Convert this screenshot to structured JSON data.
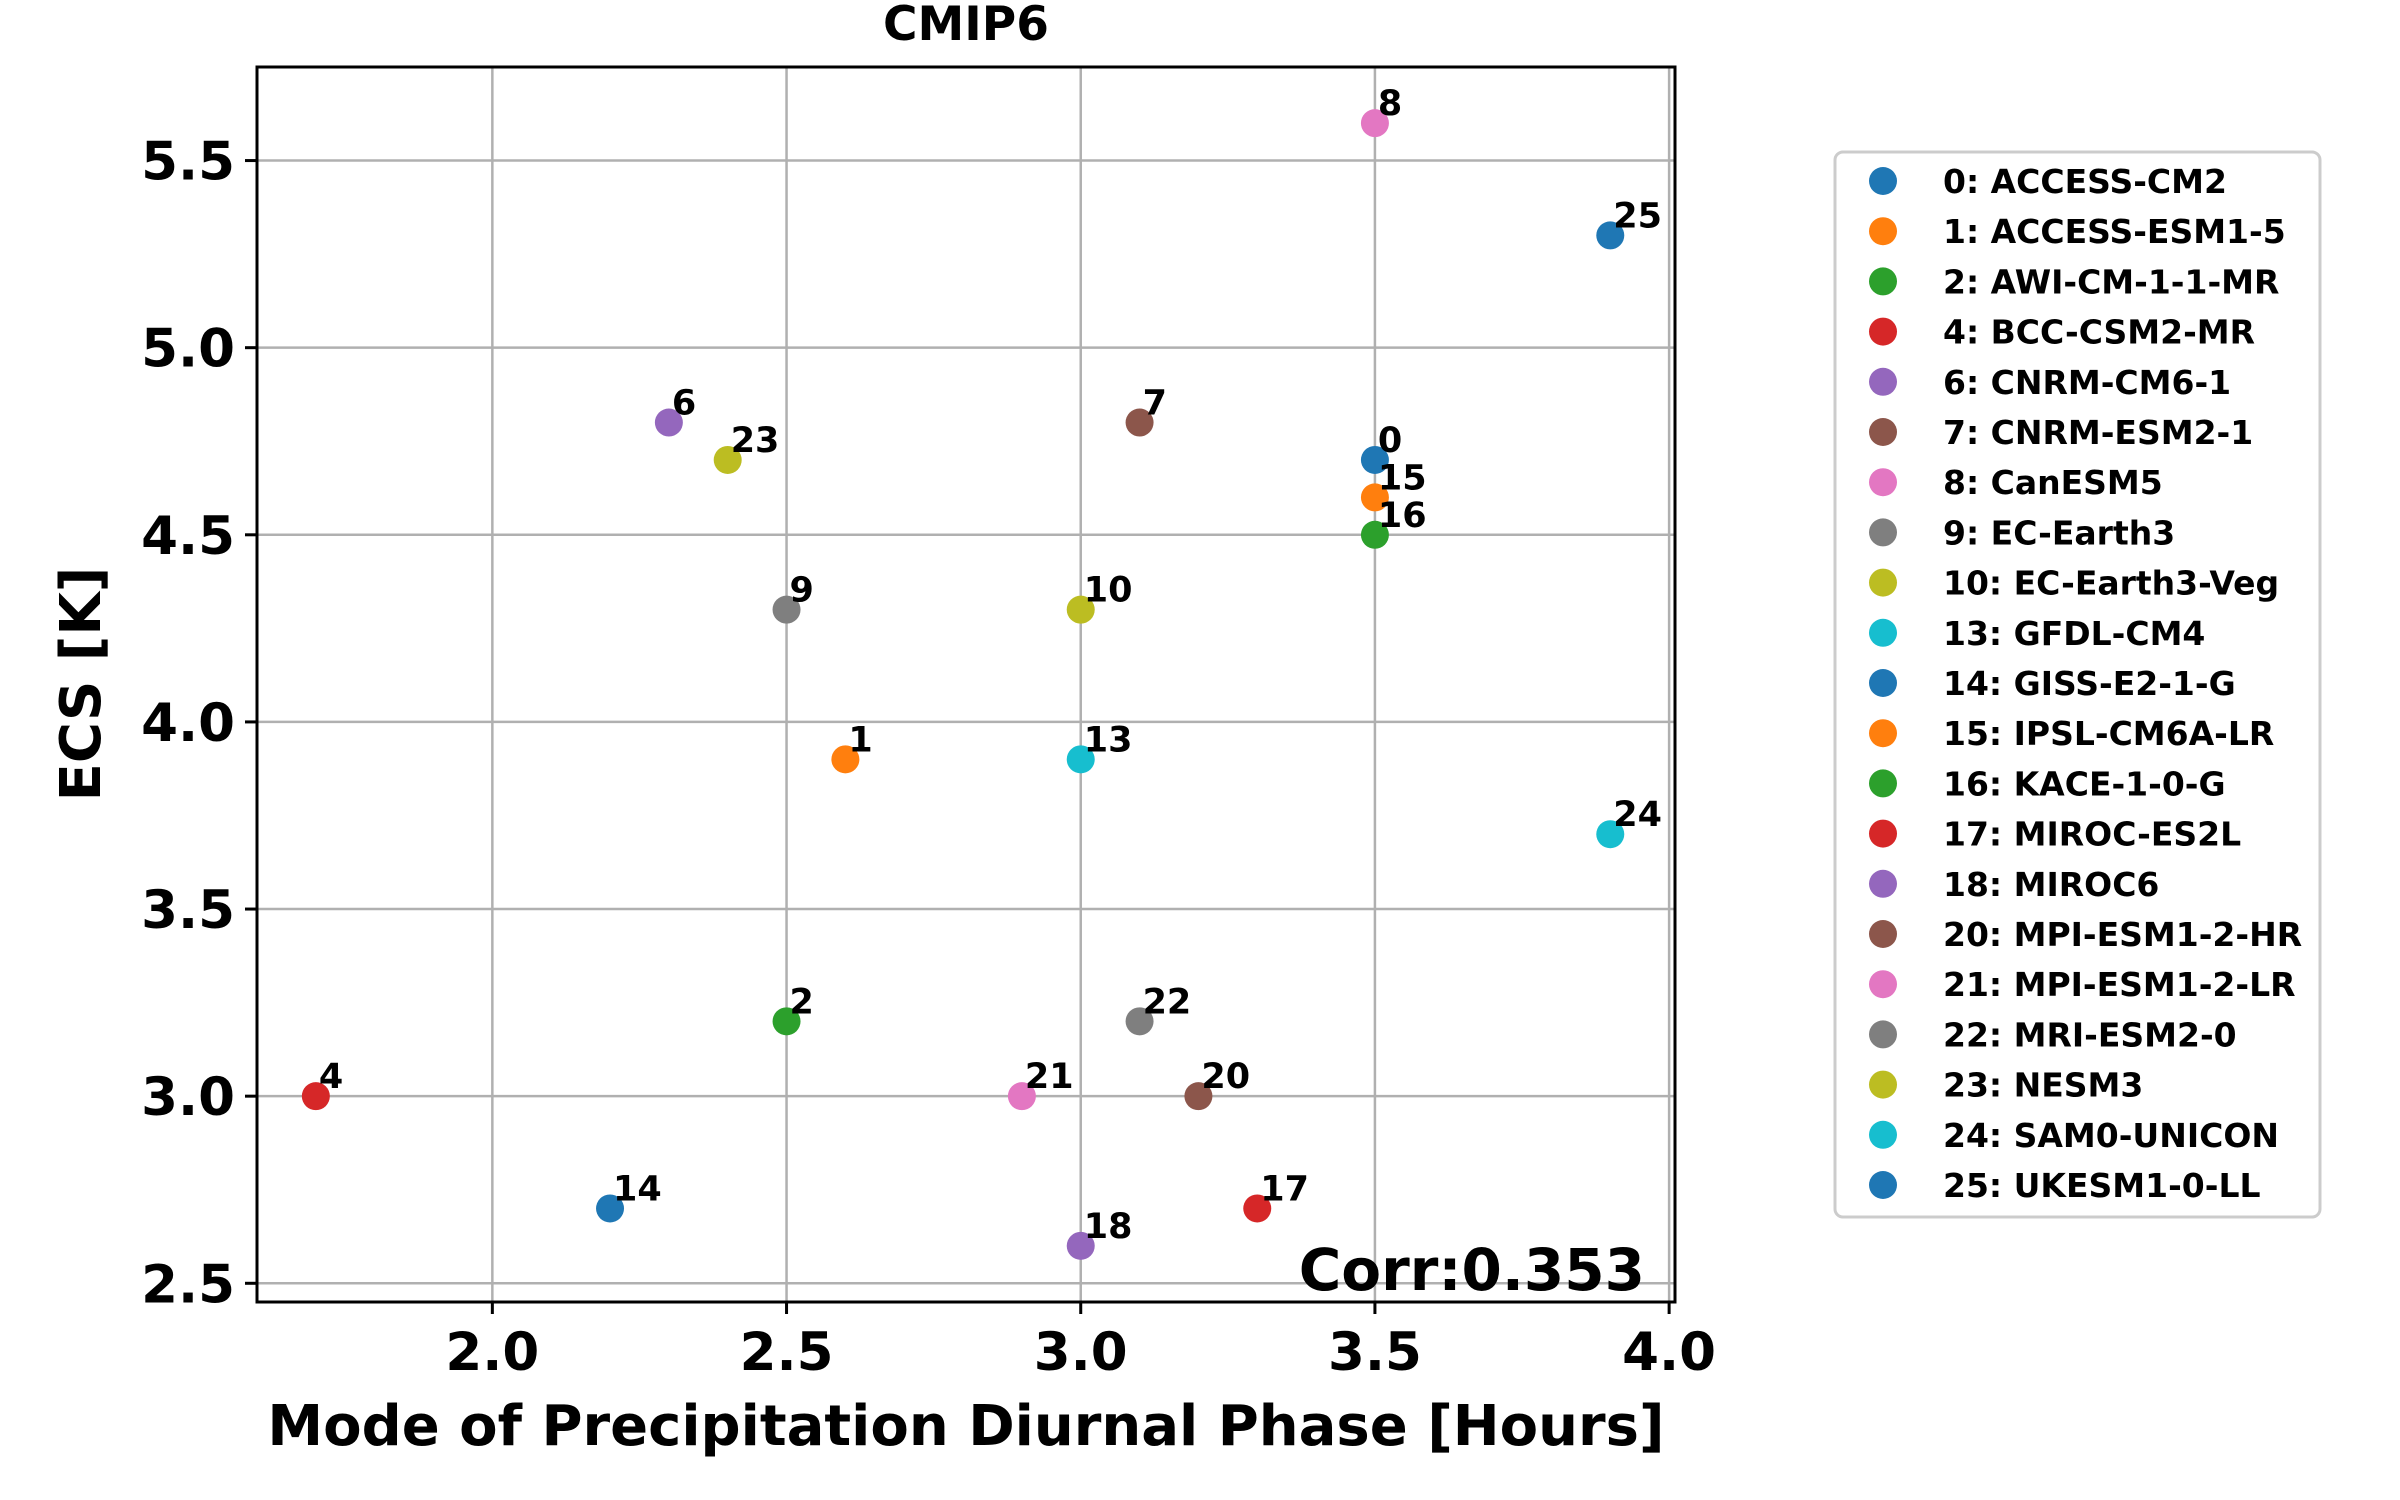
{
  "chart_data": {
    "type": "scatter",
    "title": "CMIP6",
    "xlabel": "Mode of Precipitation Diurnal Phase [Hours]",
    "ylabel": "ECS [K]",
    "xlim": [
      1.6,
      4.01
    ],
    "ylim": [
      2.45,
      5.75
    ],
    "xticks": [
      "2.0",
      "2.5",
      "3.0",
      "3.5",
      "4.0"
    ],
    "yticks": [
      "2.5",
      "3.0",
      "3.5",
      "4.0",
      "4.5",
      "5.0",
      "5.5"
    ],
    "grid": true,
    "legend_position": "outside-right",
    "annotation": "Corr:0.353",
    "points": [
      {
        "id": "0",
        "model": "0: ACCESS-CM2",
        "x": 3.5,
        "y": 4.7,
        "color": "#1f77b4"
      },
      {
        "id": "1",
        "model": "1: ACCESS-ESM1-5",
        "x": 2.6,
        "y": 3.9,
        "color": "#ff7f0e"
      },
      {
        "id": "2",
        "model": "2: AWI-CM-1-1-MR",
        "x": 2.5,
        "y": 3.2,
        "color": "#2ca02c"
      },
      {
        "id": "4",
        "model": "4: BCC-CSM2-MR",
        "x": 1.7,
        "y": 3.0,
        "color": "#d62728"
      },
      {
        "id": "6",
        "model": "6: CNRM-CM6-1",
        "x": 2.3,
        "y": 4.8,
        "color": "#9467bd"
      },
      {
        "id": "7",
        "model": "7: CNRM-ESM2-1",
        "x": 3.1,
        "y": 4.8,
        "color": "#8c564b"
      },
      {
        "id": "8",
        "model": "8: CanESM5",
        "x": 3.5,
        "y": 5.6,
        "color": "#e377c2"
      },
      {
        "id": "9",
        "model": "9: EC-Earth3",
        "x": 2.5,
        "y": 4.3,
        "color": "#7f7f7f"
      },
      {
        "id": "10",
        "model": "10: EC-Earth3-Veg",
        "x": 3.0,
        "y": 4.3,
        "color": "#bcbd22"
      },
      {
        "id": "13",
        "model": "13: GFDL-CM4",
        "x": 3.0,
        "y": 3.9,
        "color": "#17becf"
      },
      {
        "id": "14",
        "model": "14: GISS-E2-1-G",
        "x": 2.2,
        "y": 2.7,
        "color": "#1f77b4"
      },
      {
        "id": "15",
        "model": "15: IPSL-CM6A-LR",
        "x": 3.5,
        "y": 4.6,
        "color": "#ff7f0e"
      },
      {
        "id": "16",
        "model": "16: KACE-1-0-G",
        "x": 3.5,
        "y": 4.5,
        "color": "#2ca02c"
      },
      {
        "id": "17",
        "model": "17: MIROC-ES2L",
        "x": 3.3,
        "y": 2.7,
        "color": "#d62728"
      },
      {
        "id": "18",
        "model": "18: MIROC6",
        "x": 3.0,
        "y": 2.6,
        "color": "#9467bd"
      },
      {
        "id": "20",
        "model": "20: MPI-ESM1-2-HR",
        "x": 3.2,
        "y": 3.0,
        "color": "#8c564b"
      },
      {
        "id": "21",
        "model": "21: MPI-ESM1-2-LR",
        "x": 2.9,
        "y": 3.0,
        "color": "#e377c2"
      },
      {
        "id": "22",
        "model": "22: MRI-ESM2-0",
        "x": 3.1,
        "y": 3.2,
        "color": "#7f7f7f"
      },
      {
        "id": "23",
        "model": "23: NESM3",
        "x": 2.4,
        "y": 4.7,
        "color": "#bcbd22"
      },
      {
        "id": "24",
        "model": "24: SAM0-UNICON",
        "x": 3.9,
        "y": 3.7,
        "color": "#17becf"
      },
      {
        "id": "25",
        "model": "25: UKESM1-0-LL",
        "x": 3.9,
        "y": 5.3,
        "color": "#1f77b4"
      }
    ]
  }
}
